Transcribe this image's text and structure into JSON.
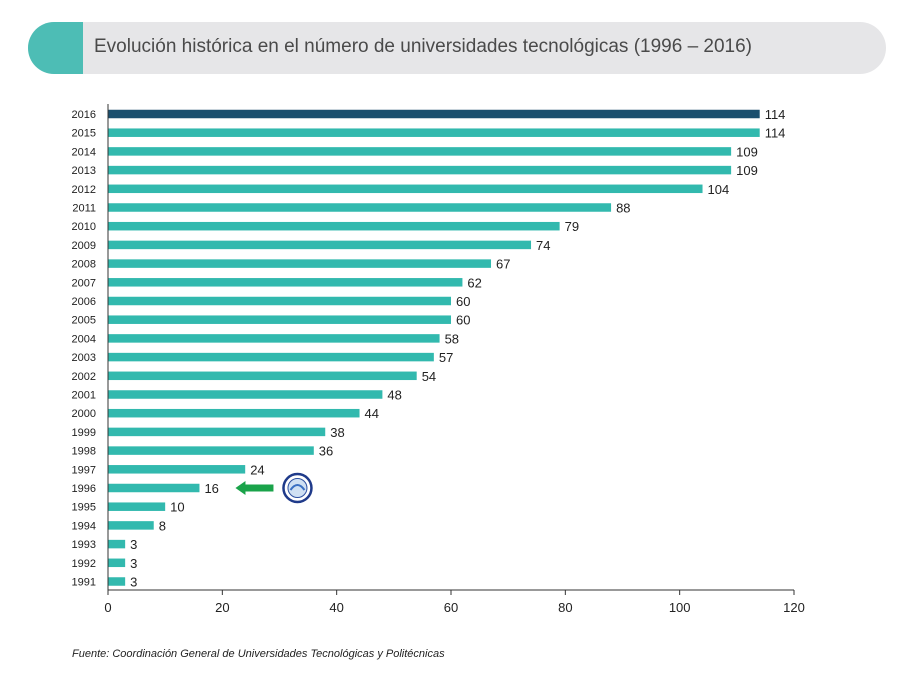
{
  "header": {
    "title": "Evolución histórica en el número de universidades tecnológicas (1996 – 2016)"
  },
  "chart_data": {
    "type": "bar",
    "orientation": "horizontal",
    "categories": [
      "2016",
      "2015",
      "2014",
      "2013",
      "2012",
      "2011",
      "2010",
      "2009",
      "2008",
      "2007",
      "2006",
      "2005",
      "2004",
      "2003",
      "2002",
      "2001",
      "2000",
      "1999",
      "1998",
      "1997",
      "1996",
      "1995",
      "1994",
      "1993",
      "1992",
      "1991"
    ],
    "values": [
      114,
      114,
      109,
      109,
      104,
      88,
      79,
      74,
      67,
      62,
      60,
      60,
      58,
      57,
      54,
      48,
      44,
      38,
      36,
      24,
      16,
      10,
      8,
      3,
      3,
      3
    ],
    "xlim": [
      0,
      120
    ],
    "x_ticks": [
      0,
      20,
      40,
      60,
      80,
      100,
      120
    ],
    "highlight_category": "2016",
    "annotated_category": "1996",
    "grid": false,
    "legend": "none",
    "colors": {
      "bar": "#32b9ae",
      "highlight": "#1b4f6e",
      "arrow": "#1aa34a",
      "axis": "#333333"
    }
  },
  "source": {
    "note": "Fuente: Coordinación General de Universidades Tecnológicas y Politécnicas"
  },
  "annotation": {
    "arrow_icon": "green-left-arrow-icon",
    "logo_icon": "university-seal-icon"
  }
}
